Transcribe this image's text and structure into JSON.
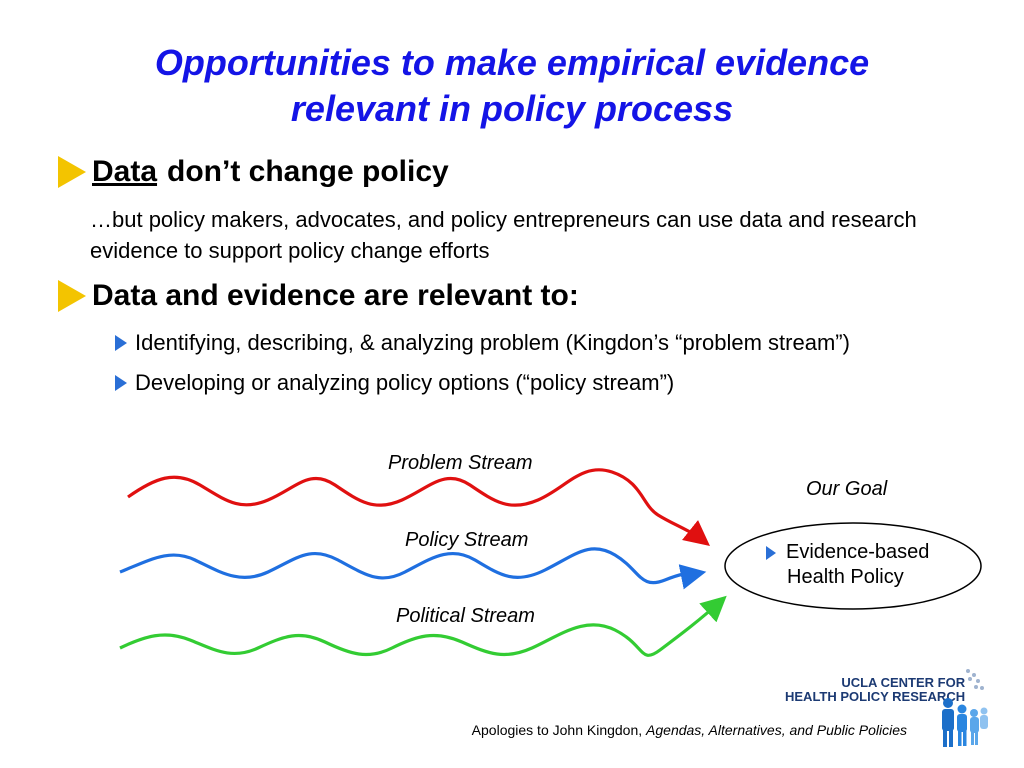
{
  "title": {
    "line1": "Opportunities to make empirical evidence",
    "line2": "relevant in policy process"
  },
  "bullets": {
    "first": {
      "underlined": "Data",
      "rest": "don’t change policy"
    },
    "body": "…but policy makers, advocates, and policy entrepreneurs can use data and research evidence to support policy change efforts",
    "second": "Data and evidence are relevant to:",
    "sub": [
      "Identifying, describing, & analyzing problem (Kingdon’s “problem stream”)",
      "Developing or analyzing policy options (“policy stream”)"
    ]
  },
  "diagram": {
    "streams": [
      {
        "label": "Problem Stream",
        "color": "#e01010"
      },
      {
        "label": "Policy Stream",
        "color": "#1f6fe0"
      },
      {
        "label": "Political Stream",
        "color": "#33cc33"
      }
    ],
    "goal_label": "Our Goal",
    "goal_line1": "Evidence-based",
    "goal_line2": "Health Policy"
  },
  "logo": {
    "line1": "UCLA CENTER FOR",
    "line2": "HEALTH POLICY RESEARCH"
  },
  "citation": {
    "prefix": "Apologies to John Kingdon, ",
    "book": "Agendas, Alternatives, and Public Policies"
  },
  "colors": {
    "title": "#1414e6",
    "bullet_yellow": "#f3c400",
    "bullet_blue": "#2a6fd6"
  },
  "icons": [
    "yellow-triangle-bullet-icon",
    "blue-triangle-bullet-icon",
    "people-group-icon"
  ]
}
